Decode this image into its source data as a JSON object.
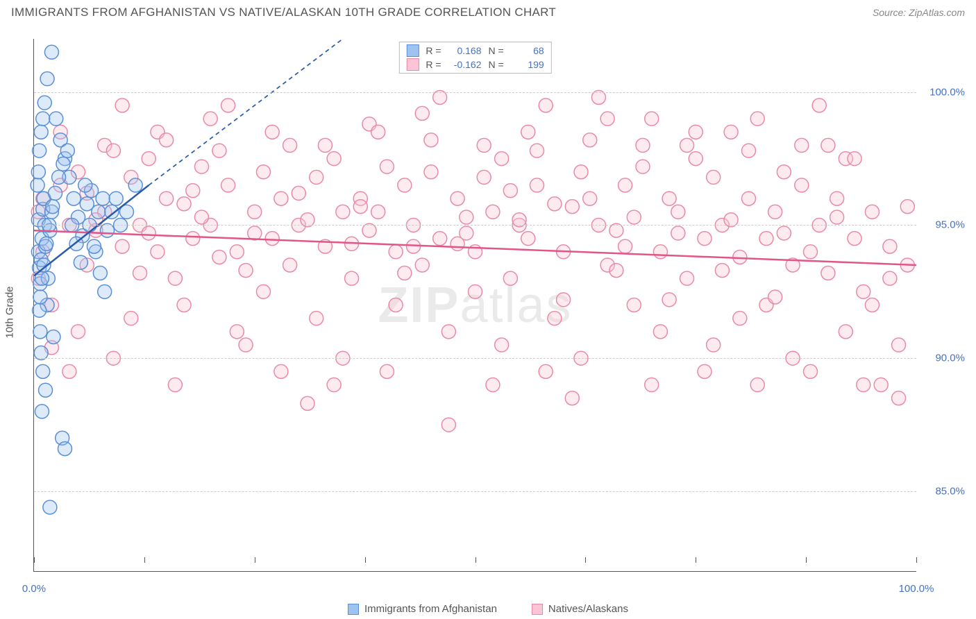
{
  "header": {
    "title": "IMMIGRANTS FROM AFGHANISTAN VS NATIVE/ALASKAN 10TH GRADE CORRELATION CHART",
    "source": "Source: ZipAtlas.com"
  },
  "watermark": {
    "bold": "ZIP",
    "light": "atlas"
  },
  "chart": {
    "type": "scatter",
    "ylabel": "10th Grade",
    "background_color": "#ffffff",
    "grid_color": "#cccccc",
    "axis_color": "#555555",
    "tick_font_color": "#4472c4",
    "tick_fontsize": 15,
    "label_fontsize": 15,
    "xlim": [
      0,
      100
    ],
    "ylim": [
      82,
      102
    ],
    "yticks": [
      85,
      90,
      95,
      100
    ],
    "ytick_labels": [
      "85.0%",
      "90.0%",
      "95.0%",
      "100.0%"
    ],
    "xticks": [
      0,
      12.5,
      25,
      37.5,
      50,
      62.5,
      75,
      87.5,
      100
    ],
    "xtick_labels": {
      "0": "0.0%",
      "100": "100.0%"
    },
    "marker_radius": 10,
    "marker_stroke_width": 1.5,
    "marker_opacity": 0.35,
    "series": [
      {
        "name": "Immigrants from Afghanistan",
        "legend_label": "Immigrants from Afghanistan",
        "fill_color": "#9ec3f0",
        "stroke_color": "#5a8fd6",
        "stats": {
          "R": "0.168",
          "N": "68"
        },
        "trend": {
          "x1": 0,
          "y1": 93.1,
          "x2": 13,
          "y2": 96.5,
          "color": "#2a5aa8",
          "width": 2.5,
          "ext_x2": 35,
          "ext_y2": 102,
          "dash": "6,5"
        },
        "points": [
          [
            0.5,
            94.0
          ],
          [
            0.6,
            93.4
          ],
          [
            0.7,
            92.8
          ],
          [
            0.8,
            93.7
          ],
          [
            0.9,
            94.5
          ],
          [
            0.5,
            95.2
          ],
          [
            1.0,
            95.6
          ],
          [
            1.1,
            96.0
          ],
          [
            1.2,
            95.0
          ],
          [
            1.3,
            94.2
          ],
          [
            0.7,
            91.0
          ],
          [
            0.8,
            90.2
          ],
          [
            1.5,
            92.0
          ],
          [
            1.6,
            93.0
          ],
          [
            1.8,
            94.8
          ],
          [
            2.0,
            95.5
          ],
          [
            0.4,
            96.5
          ],
          [
            0.5,
            97.0
          ],
          [
            0.6,
            97.8
          ],
          [
            0.8,
            98.5
          ],
          [
            1.0,
            99.0
          ],
          [
            1.2,
            99.6
          ],
          [
            1.5,
            100.5
          ],
          [
            2.0,
            101.5
          ],
          [
            2.5,
            99.0
          ],
          [
            3.0,
            98.2
          ],
          [
            3.5,
            97.5
          ],
          [
            4.0,
            96.8
          ],
          [
            4.5,
            96.0
          ],
          [
            5.0,
            95.3
          ],
          [
            5.5,
            94.6
          ],
          [
            6.0,
            95.8
          ],
          [
            6.5,
            96.3
          ],
          [
            7.0,
            94.0
          ],
          [
            7.5,
            93.2
          ],
          [
            8.0,
            92.5
          ],
          [
            2.2,
            90.8
          ],
          [
            1.0,
            89.5
          ],
          [
            1.3,
            88.8
          ],
          [
            0.9,
            88.0
          ],
          [
            3.2,
            87.0
          ],
          [
            3.5,
            86.6
          ],
          [
            1.8,
            84.4
          ],
          [
            0.6,
            91.8
          ],
          [
            0.7,
            92.3
          ],
          [
            0.9,
            93.0
          ],
          [
            1.1,
            93.5
          ],
          [
            1.4,
            94.3
          ],
          [
            1.7,
            95.0
          ],
          [
            2.1,
            95.7
          ],
          [
            2.4,
            96.2
          ],
          [
            2.8,
            96.8
          ],
          [
            3.3,
            97.3
          ],
          [
            3.8,
            97.8
          ],
          [
            4.3,
            95.0
          ],
          [
            4.8,
            94.3
          ],
          [
            5.3,
            93.6
          ],
          [
            5.8,
            96.5
          ],
          [
            6.3,
            95.0
          ],
          [
            6.8,
            94.2
          ],
          [
            7.3,
            95.5
          ],
          [
            7.8,
            96.0
          ],
          [
            8.3,
            94.8
          ],
          [
            8.8,
            95.5
          ],
          [
            9.3,
            96.0
          ],
          [
            9.8,
            95.0
          ],
          [
            10.5,
            95.5
          ],
          [
            11.5,
            96.5
          ]
        ]
      },
      {
        "name": "Natives/Alaskans",
        "legend_label": "Natives/Alaskans",
        "fill_color": "#fbc5d5",
        "stroke_color": "#e88aa8",
        "stats": {
          "R": "-0.162",
          "N": "199"
        },
        "trend": {
          "x1": 0,
          "y1": 94.8,
          "x2": 100,
          "y2": 93.5,
          "color": "#e25588",
          "width": 2.5
        },
        "points": [
          [
            0.5,
            95.5
          ],
          [
            1,
            94.0
          ],
          [
            2,
            90.4
          ],
          [
            3,
            96.5
          ],
          [
            4,
            95.0
          ],
          [
            5,
            97.0
          ],
          [
            6,
            93.5
          ],
          [
            7,
            94.8
          ],
          [
            8,
            95.5
          ],
          [
            9,
            90.0
          ],
          [
            10,
            94.2
          ],
          [
            11,
            96.8
          ],
          [
            12,
            95.0
          ],
          [
            13,
            97.5
          ],
          [
            14,
            94.0
          ],
          [
            15,
            96.0
          ],
          [
            16,
            93.0
          ],
          [
            17,
            95.8
          ],
          [
            18,
            94.5
          ],
          [
            19,
            97.2
          ],
          [
            20,
            95.0
          ],
          [
            21,
            93.8
          ],
          [
            22,
            96.5
          ],
          [
            23,
            94.0
          ],
          [
            24,
            90.5
          ],
          [
            25,
            95.5
          ],
          [
            26,
            97.0
          ],
          [
            27,
            94.5
          ],
          [
            28,
            96.0
          ],
          [
            29,
            93.5
          ],
          [
            30,
            95.0
          ],
          [
            31,
            88.3
          ],
          [
            32,
            96.8
          ],
          [
            33,
            94.2
          ],
          [
            34,
            97.5
          ],
          [
            35,
            95.5
          ],
          [
            36,
            93.0
          ],
          [
            37,
            96.0
          ],
          [
            38,
            94.8
          ],
          [
            39,
            95.5
          ],
          [
            40,
            97.2
          ],
          [
            41,
            94.0
          ],
          [
            42,
            96.5
          ],
          [
            43,
            95.0
          ],
          [
            44,
            93.5
          ],
          [
            45,
            97.0
          ],
          [
            46,
            94.5
          ],
          [
            47,
            87.5
          ],
          [
            48,
            96.0
          ],
          [
            49,
            95.3
          ],
          [
            50,
            94.0
          ],
          [
            51,
            96.8
          ],
          [
            52,
            95.5
          ],
          [
            53,
            97.5
          ],
          [
            54,
            93.0
          ],
          [
            55,
            95.0
          ],
          [
            56,
            94.5
          ],
          [
            57,
            96.5
          ],
          [
            58,
            99.5
          ],
          [
            59,
            95.8
          ],
          [
            60,
            94.0
          ],
          [
            61,
            88.5
          ],
          [
            62,
            97.0
          ],
          [
            63,
            96.0
          ],
          [
            64,
            95.0
          ],
          [
            65,
            93.5
          ],
          [
            66,
            94.8
          ],
          [
            67,
            96.5
          ],
          [
            68,
            95.3
          ],
          [
            69,
            97.2
          ],
          [
            70,
            99.0
          ],
          [
            71,
            94.0
          ],
          [
            72,
            96.0
          ],
          [
            73,
            95.5
          ],
          [
            74,
            93.0
          ],
          [
            75,
            97.5
          ],
          [
            76,
            94.5
          ],
          [
            77,
            96.8
          ],
          [
            78,
            95.0
          ],
          [
            79,
            98.5
          ],
          [
            80,
            93.8
          ],
          [
            81,
            96.0
          ],
          [
            82,
            99.0
          ],
          [
            83,
            94.5
          ],
          [
            84,
            95.5
          ],
          [
            85,
            97.0
          ],
          [
            86,
            93.5
          ],
          [
            87,
            96.5
          ],
          [
            88,
            94.0
          ],
          [
            89,
            95.0
          ],
          [
            90,
            98.0
          ],
          [
            91,
            96.0
          ],
          [
            92,
            97.5
          ],
          [
            93,
            94.5
          ],
          [
            94,
            92.5
          ],
          [
            95,
            95.5
          ],
          [
            96,
            89.0
          ],
          [
            97,
            93.0
          ],
          [
            98,
            88.5
          ],
          [
            99,
            93.5
          ],
          [
            2,
            92.0
          ],
          [
            5,
            91.0
          ],
          [
            8,
            98.0
          ],
          [
            11,
            91.5
          ],
          [
            14,
            98.5
          ],
          [
            17,
            92.0
          ],
          [
            20,
            99.0
          ],
          [
            23,
            91.0
          ],
          [
            26,
            92.5
          ],
          [
            29,
            98.0
          ],
          [
            32,
            91.5
          ],
          [
            35,
            90.0
          ],
          [
            38,
            98.8
          ],
          [
            41,
            92.0
          ],
          [
            44,
            99.2
          ],
          [
            47,
            91.0
          ],
          [
            50,
            92.5
          ],
          [
            53,
            90.5
          ],
          [
            56,
            98.5
          ],
          [
            59,
            91.5
          ],
          [
            62,
            90.0
          ],
          [
            65,
            99.0
          ],
          [
            68,
            92.0
          ],
          [
            71,
            91.0
          ],
          [
            74,
            98.0
          ],
          [
            77,
            90.5
          ],
          [
            80,
            91.5
          ],
          [
            83,
            92.0
          ],
          [
            86,
            90.0
          ],
          [
            89,
            99.5
          ],
          [
            92,
            91.0
          ],
          [
            95,
            92.0
          ],
          [
            98,
            90.5
          ],
          [
            4,
            89.5
          ],
          [
            10,
            99.5
          ],
          [
            16,
            89.0
          ],
          [
            22,
            99.5
          ],
          [
            28,
            89.5
          ],
          [
            34,
            89.0
          ],
          [
            40,
            89.5
          ],
          [
            46,
            99.8
          ],
          [
            52,
            89.0
          ],
          [
            58,
            89.5
          ],
          [
            64,
            99.8
          ],
          [
            70,
            89.0
          ],
          [
            76,
            89.5
          ],
          [
            82,
            89.0
          ],
          [
            88,
            89.5
          ],
          [
            94,
            89.0
          ],
          [
            3,
            98.5
          ],
          [
            9,
            97.8
          ],
          [
            15,
            98.2
          ],
          [
            21,
            97.8
          ],
          [
            27,
            98.5
          ],
          [
            33,
            98.0
          ],
          [
            39,
            98.5
          ],
          [
            45,
            98.2
          ],
          [
            51,
            98.0
          ],
          [
            57,
            97.8
          ],
          [
            63,
            98.2
          ],
          [
            69,
            98.0
          ],
          [
            75,
            98.5
          ],
          [
            81,
            97.8
          ],
          [
            87,
            98.0
          ],
          [
            93,
            97.5
          ],
          [
            6,
            96.2
          ],
          [
            12,
            93.2
          ],
          [
            18,
            96.3
          ],
          [
            24,
            93.3
          ],
          [
            30,
            96.2
          ],
          [
            36,
            94.3
          ],
          [
            42,
            93.2
          ],
          [
            48,
            94.3
          ],
          [
            54,
            96.3
          ],
          [
            60,
            92.2
          ],
          [
            66,
            93.3
          ],
          [
            72,
            92.2
          ],
          [
            78,
            93.3
          ],
          [
            84,
            92.3
          ],
          [
            90,
            93.2
          ],
          [
            7,
            95.2
          ],
          [
            13,
            94.7
          ],
          [
            19,
            95.3
          ],
          [
            25,
            94.7
          ],
          [
            31,
            95.2
          ],
          [
            37,
            95.7
          ],
          [
            43,
            94.2
          ],
          [
            49,
            94.7
          ],
          [
            55,
            95.2
          ],
          [
            61,
            95.7
          ],
          [
            67,
            94.2
          ],
          [
            73,
            94.7
          ],
          [
            79,
            95.2
          ],
          [
            85,
            94.7
          ],
          [
            91,
            95.3
          ],
          [
            97,
            94.2
          ],
          [
            99,
            95.7
          ],
          [
            1,
            96.0
          ],
          [
            0.5,
            93.0
          ]
        ]
      }
    ]
  },
  "bottom_legend": [
    {
      "label": "Immigrants from Afghanistan",
      "fill": "#9ec3f0",
      "stroke": "#5a8fd6"
    },
    {
      "label": "Natives/Alaskans",
      "fill": "#fbc5d5",
      "stroke": "#e88aa8"
    }
  ]
}
